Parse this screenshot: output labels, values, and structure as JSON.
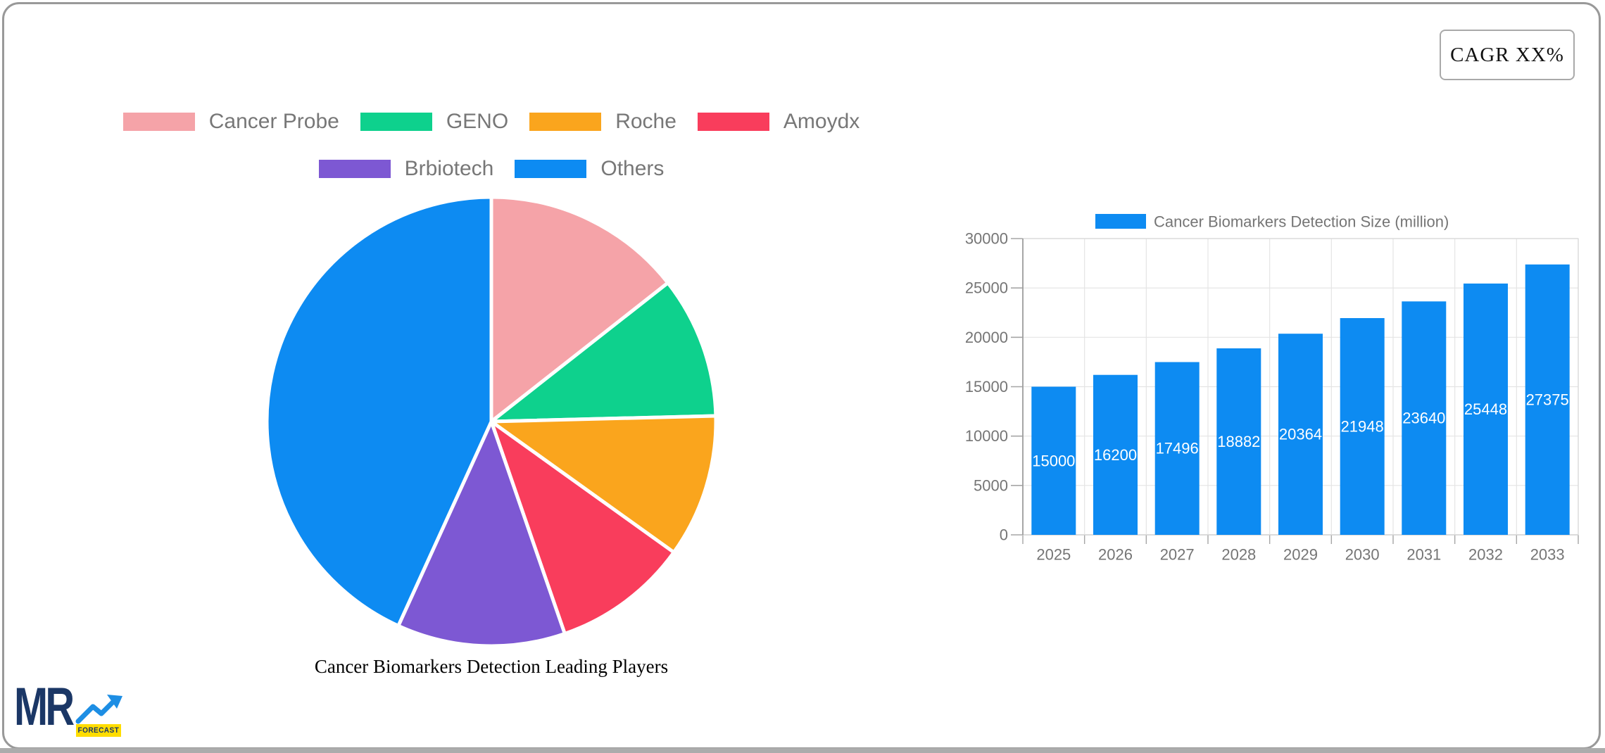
{
  "page": {
    "cagr_badge": "CAGR XX%"
  },
  "logo": {
    "mr_text": "MR",
    "forecast_text": "FORECAST",
    "navy": "#1b3766",
    "blue": "#1d8ee4",
    "yellow": "#ffdd00"
  },
  "chart_data": [
    {
      "type": "pie",
      "title": "Cancer Biomarkers Detection Leading Players",
      "legend_position": "top",
      "legend_rows": [
        [
          "Cancer Probe",
          "GENO",
          "Roche",
          "Amoydx"
        ],
        [
          "Brbiotech",
          "Others"
        ]
      ],
      "labels": [
        "Cancer Probe",
        "GENO",
        "Roche",
        "Amoydx",
        "Brbiotech",
        "Others"
      ],
      "values": [
        14.4,
        10.2,
        10.3,
        9.8,
        12.1,
        43.2
      ],
      "values_note": "percent share estimated from slice angles; no numeric labels shown in image",
      "colors": [
        "#f5a3a8",
        "#0ed18d",
        "#faa51d",
        "#f93d5c",
        "#7d58d3",
        "#0d8bf2"
      ],
      "start_angle": "12 o'clock, clockwise",
      "slice_gap_color": "#ffffff"
    },
    {
      "type": "bar",
      "legend": [
        "Cancer Biomarkers Detection Size (million)"
      ],
      "categories": [
        "2025",
        "2026",
        "2027",
        "2028",
        "2029",
        "2030",
        "2031",
        "2032",
        "2033"
      ],
      "values": [
        15000,
        16200,
        17496,
        18882,
        20364,
        21948,
        23640,
        25448,
        27375
      ],
      "bar_color": "#0d8bf2",
      "value_label_color": "#ffffff",
      "axis_text_color": "#757575",
      "xlabel": "",
      "ylabel": "",
      "ylim": [
        0,
        30000
      ],
      "yticks": [
        0,
        5000,
        10000,
        15000,
        20000,
        25000,
        30000
      ],
      "grid": true,
      "grid_color": "#e4e4e4",
      "legend_position": "top"
    }
  ]
}
